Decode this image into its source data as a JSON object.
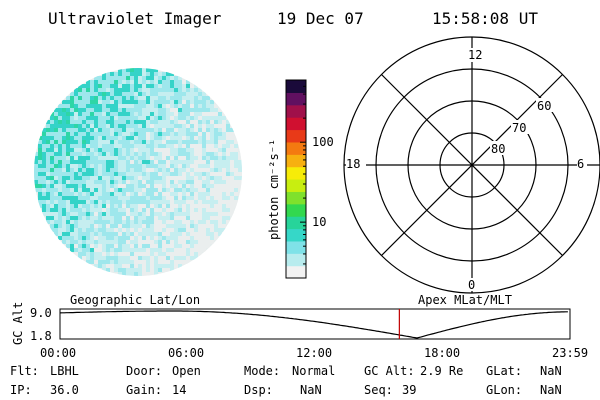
{
  "header": {
    "instrument": "Ultraviolet Imager",
    "date": "19 Dec 07",
    "time": "15:58:08 UT"
  },
  "colorbar": {
    "unit_label": "photon cm⁻²s⁻¹",
    "ticks": [
      {
        "value": 100,
        "label": "100"
      },
      {
        "value": 10,
        "label": "10"
      }
    ],
    "range": [
      2,
      600
    ],
    "scale": "log",
    "stops": [
      "#f2f2f2",
      "#b8ecee",
      "#7fe2e8",
      "#36d7c8",
      "#27d49a",
      "#32d84e",
      "#7fe12c",
      "#c8ee10",
      "#f7ec08",
      "#f7b010",
      "#f47a10",
      "#e83a18",
      "#d01030",
      "#a0104a",
      "#601060",
      "#1a0a3a"
    ]
  },
  "polar_grid": {
    "mlt_labels": [
      {
        "label": "12",
        "angle": 90
      },
      {
        "label": "18",
        "angle": 180
      },
      {
        "label": "6",
        "angle": 0
      },
      {
        "label": "0",
        "angle": 270
      }
    ],
    "lat_labels": [
      "60",
      "70",
      "80"
    ]
  },
  "timeline": {
    "ylabel": "GC Alt",
    "yticks": [
      "9.0",
      "1.8"
    ],
    "left_label": "Geographic Lat/Lon",
    "right_label": "Apex MLat/MLT",
    "xticks": [
      "00:00",
      "06:00",
      "12:00",
      "18:00",
      "23:59"
    ],
    "current_hour": 15.97,
    "min_hour": 16.8
  },
  "status": {
    "filter_label": "Flt:",
    "filter_value": "LBHL",
    "ip_label": "IP:",
    "ip_value": "36.0",
    "door_label": "Door:",
    "door_value": "Open",
    "gain_label": "Gain:",
    "gain_value": "14",
    "mode_label": "Mode:",
    "mode_value": "Normal",
    "dsp_label": "Dsp:",
    "dsp_value": "NaN",
    "gcalt_label": "GC Alt:",
    "gcalt_value": "2.9 Re",
    "seq_label": "Seq:",
    "seq_value": "39",
    "glat_label": "GLat:",
    "glat_value": "NaN",
    "glon_label": "GLon:",
    "glon_value": "NaN"
  }
}
